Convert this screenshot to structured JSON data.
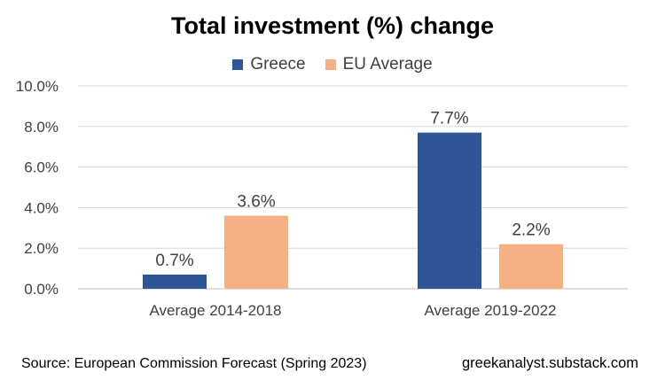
{
  "chart_data": {
    "type": "bar",
    "title": "Total investment (%) change",
    "categories": [
      "Average 2014-2018",
      "Average 2019-2022"
    ],
    "series": [
      {
        "name": "Greece",
        "values": [
          0.7,
          7.7
        ],
        "color": "#2f5597"
      },
      {
        "name": "EU Average",
        "values": [
          3.6,
          2.2
        ],
        "color": "#f4b183"
      }
    ],
    "data_labels": [
      [
        "0.7%",
        "7.7%"
      ],
      [
        "3.6%",
        "2.2%"
      ]
    ],
    "ylim": [
      0,
      10
    ],
    "y_ticks": [
      "0.0%",
      "2.0%",
      "4.0%",
      "6.0%",
      "8.0%",
      "10.0%"
    ],
    "xlabel": "",
    "ylabel": "",
    "grid": true,
    "legend_position": "top"
  },
  "footer": {
    "source": "Source: European Commission Forecast (Spring 2023)",
    "credit": "greekanalyst.substack.com"
  }
}
